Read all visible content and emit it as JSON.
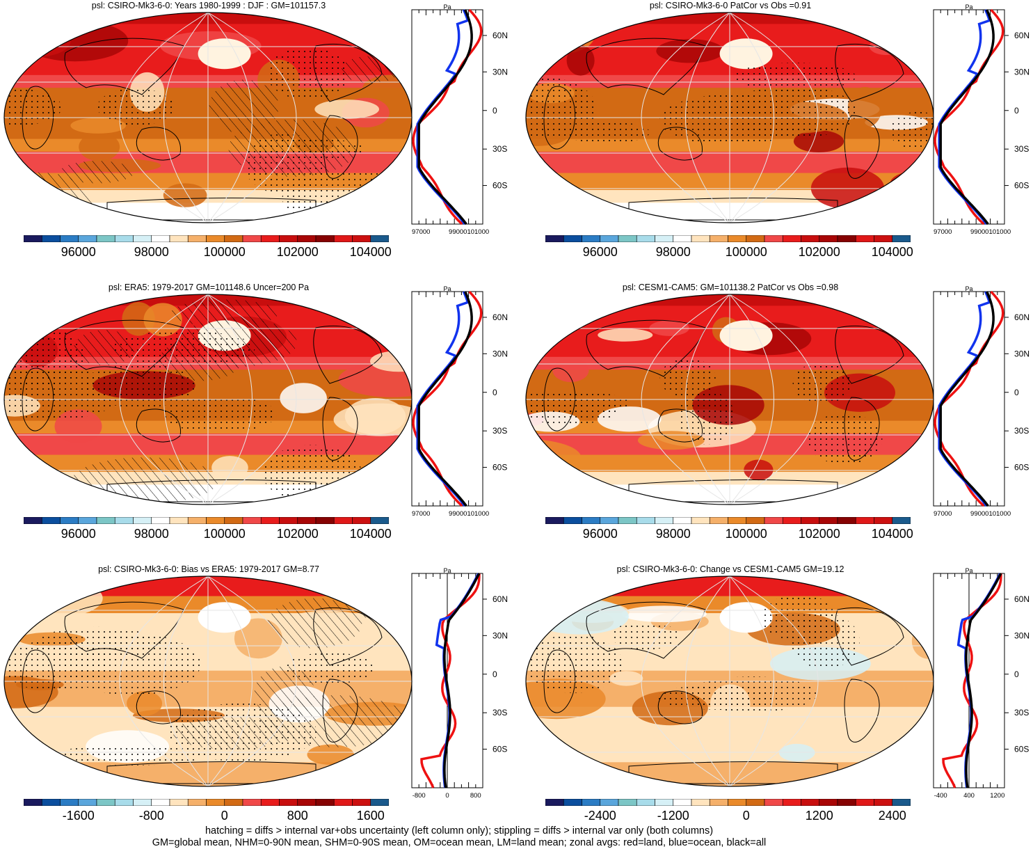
{
  "panels": [
    {
      "title": "psl: CSIRO-Mk3-6-0: Years 1980-1999 : DJF : GM=101157.3",
      "kind": "abs",
      "hatching": true,
      "profile": {
        "units": "Pa",
        "xticks": [
          "97000",
          "99000101000"
        ],
        "lat_labels": [
          "60N",
          "30N",
          "0",
          "30S",
          "60S"
        ]
      },
      "colorbar": {
        "labels": [
          "96000",
          "98000",
          "100000",
          "102000",
          "104000"
        ]
      }
    },
    {
      "title": "psl: CSIRO-Mk3-6-0 PatCor vs Obs =0.91",
      "kind": "abs",
      "hatching": false,
      "profile": {
        "units": "Pa",
        "xticks": [
          "97000",
          "99000101000"
        ],
        "lat_labels": [
          "60N",
          "30N",
          "0",
          "30S",
          "60S"
        ]
      },
      "colorbar": {
        "labels": [
          "96000",
          "98000",
          "100000",
          "102000",
          "104000"
        ]
      }
    },
    {
      "title": "psl: ERA5: 1979-2017 GM=101148.6 Uncer=200 Pa",
      "kind": "abs",
      "hatching": true,
      "profile": {
        "units": "Pa",
        "xticks": [
          "97000",
          "99000101000"
        ],
        "lat_labels": [
          "60N",
          "30N",
          "0",
          "30S",
          "60S"
        ]
      },
      "colorbar": {
        "labels": [
          "96000",
          "98000",
          "100000",
          "102000",
          "104000"
        ]
      }
    },
    {
      "title": "psl: CESM1-CAM5: GM=101138.2 PatCor vs Obs =0.98",
      "kind": "abs",
      "hatching": false,
      "profile": {
        "units": "Pa",
        "xticks": [
          "97000",
          "99000101000"
        ],
        "lat_labels": [
          "60N",
          "30N",
          "0",
          "30S",
          "60S"
        ]
      },
      "colorbar": {
        "labels": [
          "96000",
          "98000",
          "100000",
          "102000",
          "104000"
        ]
      }
    },
    {
      "title": "psl: CSIRO-Mk3-6-0: Bias vs ERA5: 1979-2017 GM=8.77",
      "kind": "diff",
      "hatching": true,
      "profile": {
        "units": "Pa",
        "xticks": [
          "-800",
          "0",
          "800"
        ],
        "lat_labels": [
          "60N",
          "30N",
          "0",
          "30S",
          "60S"
        ]
      },
      "colorbar": {
        "labels": [
          "-1600",
          "-800",
          "0",
          "800",
          "1600"
        ]
      }
    },
    {
      "title": "psl: CSIRO-Mk3-6-0: Change vs CESM1-CAM5 GM=19.12",
      "kind": "diff",
      "hatching": false,
      "profile": {
        "units": "Pa",
        "xticks": [
          "-400",
          "400",
          "1200"
        ],
        "lat_labels": [
          "60N",
          "30N",
          "0",
          "30S",
          "60S"
        ]
      },
      "colorbar": {
        "labels": [
          "-2400",
          "-1200",
          "0",
          "1200",
          "2400"
        ]
      }
    }
  ],
  "colors": {
    "palette": [
      "#1a1a5e",
      "#0b4e9e",
      "#2b7cc4",
      "#5aa6dc",
      "#7cc6c6",
      "#a8dcea",
      "#d6f0f6",
      "#ffffff",
      "#ffe4be",
      "#f5b06a",
      "#ea8a2a",
      "#d26a14",
      "#f04848",
      "#e81c1c",
      "#c80e0e",
      "#a80606",
      "#860202",
      "#e01818",
      "#cc1010",
      "#1a5a8c"
    ],
    "land_profile": "#ee1111",
    "ocean_profile": "#1133ee",
    "all_profile": "#000000"
  },
  "footer": {
    "line1": "hatching = diffs > internal var+obs uncertainty (left column only); stippling = diffs > internal var only (both columns)",
    "line2": "GM=global mean, NHM=0-90N mean, SHM=0-90S mean, OM=ocean mean, LM=land mean; zonal avgs: red=land, blue=ocean, black=all"
  }
}
